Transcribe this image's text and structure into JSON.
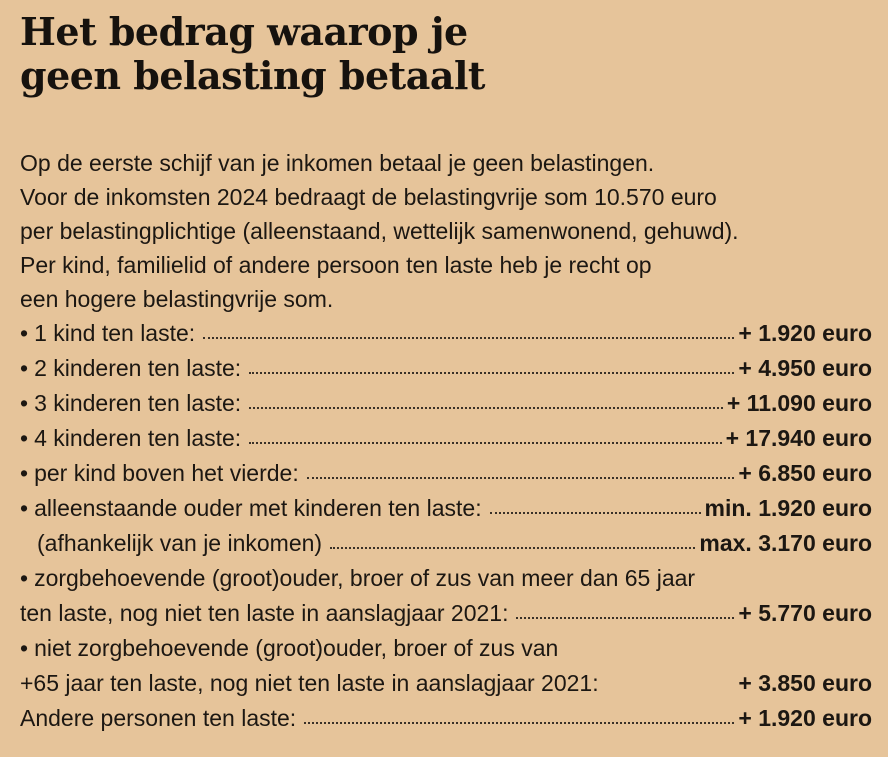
{
  "title": {
    "line1": "Het bedrag waarop je",
    "line2": "geen belasting betaalt"
  },
  "intro": [
    "Op de eerste schijf van je inkomen betaal je geen belastingen.",
    "Voor de inkomsten 2024 bedraagt de belastingvrije som 10.570 euro",
    "per belastingplichtige (alleenstaand, wettelijk samenwonend, gehuwd).",
    "Per kind, familielid of andere persoon ten laste heb je recht op",
    "een hogere belastingvrije som."
  ],
  "bullet_symbol": "•",
  "items": [
    {
      "label": "1 kind ten laste:",
      "amount": "+ 1.920 euro"
    },
    {
      "label": "2 kinderen ten laste:",
      "amount": "+ 4.950 euro"
    },
    {
      "label": "3 kinderen ten laste:",
      "amount": "+ 11.090 euro"
    },
    {
      "label": "4 kinderen ten laste:",
      "amount": "+ 17.940 euro"
    },
    {
      "label": "per kind boven het vierde:",
      "amount": "+ 6.850 euro"
    },
    {
      "label": "alleenstaande ouder met kinderen ten laste:",
      "amount": "min. 1.920 euro"
    },
    {
      "label": "(afhankelijk van je inkomen)",
      "amount": "max. 3.170 euro"
    },
    {
      "label": "zorgbehoevende (groot)ouder, broer of zus van meer dan 65 jaar"
    },
    {
      "label": "ten laste, nog niet ten laste in aanslagjaar 2021:",
      "amount": "+ 5.770 euro"
    },
    {
      "label": "niet zorgbehoevende (groot)ouder, broer of zus van"
    },
    {
      "label": "+65 jaar ten laste, nog niet ten laste in aanslagjaar 2021:",
      "amount": "+ 3.850 euro"
    },
    {
      "label": "Andere personen ten laste:",
      "amount": "+ 1.920 euro"
    }
  ]
}
